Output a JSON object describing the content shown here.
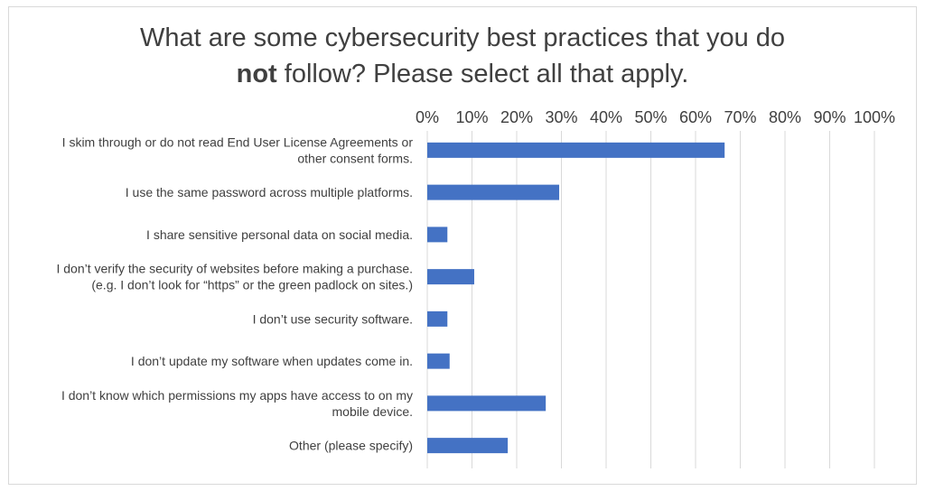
{
  "chart_data": {
    "type": "bar",
    "orientation": "horizontal",
    "title_line1": "What are some cybersecurity best practices that you do",
    "title_line2_bold": "not",
    "title_line2_rest": " follow? Please select all that apply.",
    "categories": [
      [
        "I skim through or do not read End User License Agreements or",
        "other consent forms."
      ],
      [
        "I use the same password across multiple platforms."
      ],
      [
        "I share sensitive personal data on social media."
      ],
      [
        "I don’t verify the security of websites before making a purchase.",
        "(e.g. I don’t look for “https” or the green padlock on sites.)"
      ],
      [
        "I don’t use security software."
      ],
      [
        "I don’t update my software when updates come in."
      ],
      [
        "I don’t know which permissions my apps have access to on my",
        "mobile device."
      ],
      [
        "Other (please specify)"
      ]
    ],
    "values": [
      66.5,
      29.5,
      4.5,
      10.5,
      4.5,
      5,
      26.5,
      18
    ],
    "xlim": [
      0,
      100
    ],
    "x_ticks": [
      "0%",
      "10%",
      "20%",
      "30%",
      "40%",
      "50%",
      "60%",
      "70%",
      "80%",
      "90%",
      "100%"
    ],
    "axis_position": "top",
    "grid": true,
    "colors": {
      "bar": "#4472c4",
      "grid": "#d9d9d9",
      "text": "#404040"
    }
  }
}
